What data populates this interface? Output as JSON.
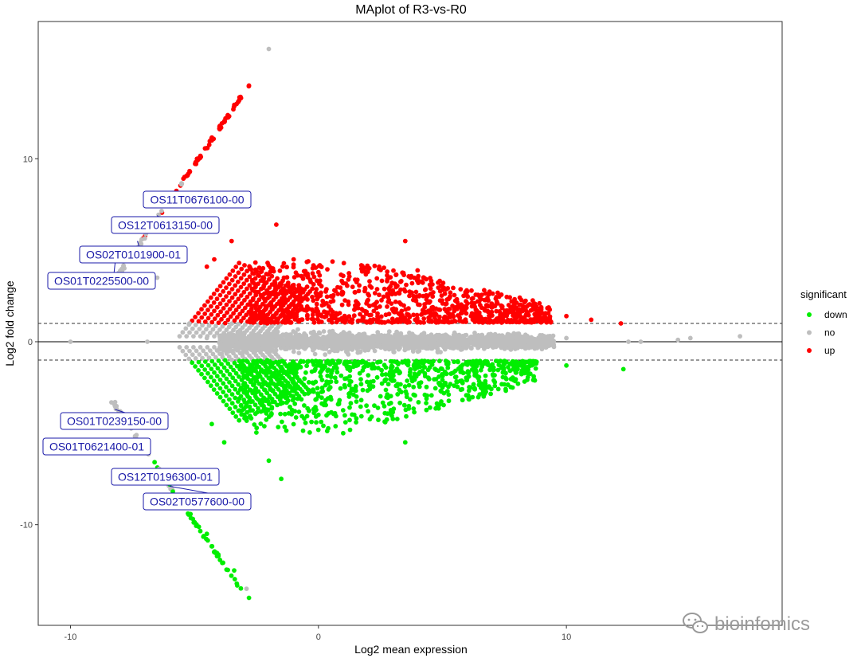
{
  "chart_data": {
    "type": "scatter",
    "title": "MAplot of R3-vs-R0",
    "xlabel": "Log2 mean expression",
    "ylabel": "Log2 fold change",
    "xlim": [
      -11.3,
      18.7
    ],
    "ylim": [
      -15.5,
      17.5
    ],
    "x_ticks": [
      -10,
      0,
      10
    ],
    "y_ticks": [
      -10,
      0,
      10
    ],
    "grid": false,
    "reference_lines": {
      "solid": [
        0
      ],
      "dashed": [
        -1,
        1
      ]
    },
    "legend": {
      "title": "significant",
      "position": "right",
      "entries": [
        {
          "name": "down",
          "color": "#00ee00"
        },
        {
          "name": "no",
          "color": "#bebebe"
        },
        {
          "name": "up",
          "color": "#ff0000"
        }
      ]
    },
    "series": [
      {
        "name": "up",
        "color": "#ff0000",
        "points": [
          [
            -2.8,
            14.0
          ],
          [
            -3.3,
            13.0
          ],
          [
            -3.8,
            12.0
          ],
          [
            -4.3,
            11.0
          ],
          [
            -4.9,
            10.0
          ],
          [
            -5.4,
            9.0
          ],
          [
            -4.2,
            4.5
          ],
          [
            -4.5,
            4.1
          ],
          [
            -3.5,
            5.5
          ],
          [
            -1.7,
            6.4
          ],
          [
            -1.0,
            4.5
          ],
          [
            0.0,
            3.8
          ],
          [
            1.0,
            3.2
          ],
          [
            2.0,
            2.6
          ],
          [
            3.0,
            2.8
          ],
          [
            3.5,
            5.5
          ],
          [
            4.0,
            3.9
          ],
          [
            4.5,
            2.2
          ],
          [
            5.0,
            3.0
          ],
          [
            6.0,
            2.5
          ],
          [
            7.0,
            2.0
          ],
          [
            8.0,
            1.8
          ],
          [
            9.0,
            1.6
          ],
          [
            10.0,
            1.4
          ],
          [
            11.0,
            1.2
          ],
          [
            12.2,
            1.0
          ]
        ]
      },
      {
        "name": "no",
        "color": "#bebebe",
        "points": [
          [
            -2.0,
            16.0
          ],
          [
            -6.5,
            3.5
          ],
          [
            -8.2,
            3.3
          ],
          [
            -10.0,
            0.0
          ],
          [
            -6.9,
            0.0
          ],
          [
            -5.2,
            1.0
          ],
          [
            -4.5,
            0.2
          ],
          [
            -3.0,
            0.1
          ],
          [
            0.0,
            0.0
          ],
          [
            3.0,
            0.0
          ],
          [
            6.0,
            0.0
          ],
          [
            8.0,
            0.3
          ],
          [
            10.0,
            0.2
          ],
          [
            12.5,
            0.0
          ],
          [
            13.0,
            0.0
          ],
          [
            14.5,
            0.1
          ],
          [
            15.0,
            0.2
          ],
          [
            17.0,
            0.3
          ],
          [
            -8.2,
            -3.3
          ],
          [
            -2.9,
            -13.5
          ]
        ]
      },
      {
        "name": "down",
        "color": "#00ee00",
        "points": [
          [
            -2.8,
            -14.0
          ],
          [
            -3.4,
            -12.5
          ],
          [
            -4.5,
            -10.5
          ],
          [
            -5.3,
            -9.0
          ],
          [
            -6.0,
            -7.8
          ],
          [
            -4.3,
            -4.5
          ],
          [
            -3.8,
            -5.5
          ],
          [
            -3.0,
            -4.0
          ],
          [
            -2.0,
            -6.5
          ],
          [
            -1.5,
            -7.5
          ],
          [
            0.0,
            -4.0
          ],
          [
            1.0,
            -5.0
          ],
          [
            2.0,
            -3.8
          ],
          [
            3.5,
            -5.5
          ],
          [
            5.0,
            -2.5
          ],
          [
            6.0,
            -2.0
          ],
          [
            8.0,
            -1.5
          ],
          [
            10.0,
            -1.3
          ],
          [
            12.3,
            -1.5
          ]
        ]
      }
    ],
    "gene_labels": [
      {
        "text": "OS11T0676100-00",
        "point": [
          -6.2,
          7.6
        ]
      },
      {
        "text": "OS12T0613150-00",
        "point": [
          -6.5,
          6.9
        ]
      },
      {
        "text": "OS02T0101900-01",
        "point": [
          -7.3,
          5.5
        ]
      },
      {
        "text": "OS01T0225500-00",
        "point": [
          -8.2,
          4.3
        ]
      },
      {
        "text": "OS01T0239150-00",
        "point": [
          -8.2,
          -3.7
        ]
      },
      {
        "text": "OS01T0621400-01",
        "point": [
          -7.6,
          -5.6
        ]
      },
      {
        "text": "OS12T0196300-01",
        "point": [
          -6.6,
          -7.1
        ]
      },
      {
        "text": "OS02T0577600-00",
        "point": [
          -6.0,
          -7.9
        ]
      }
    ]
  },
  "watermark": {
    "text": "bioinfomics",
    "icon": "wechat-icon"
  }
}
